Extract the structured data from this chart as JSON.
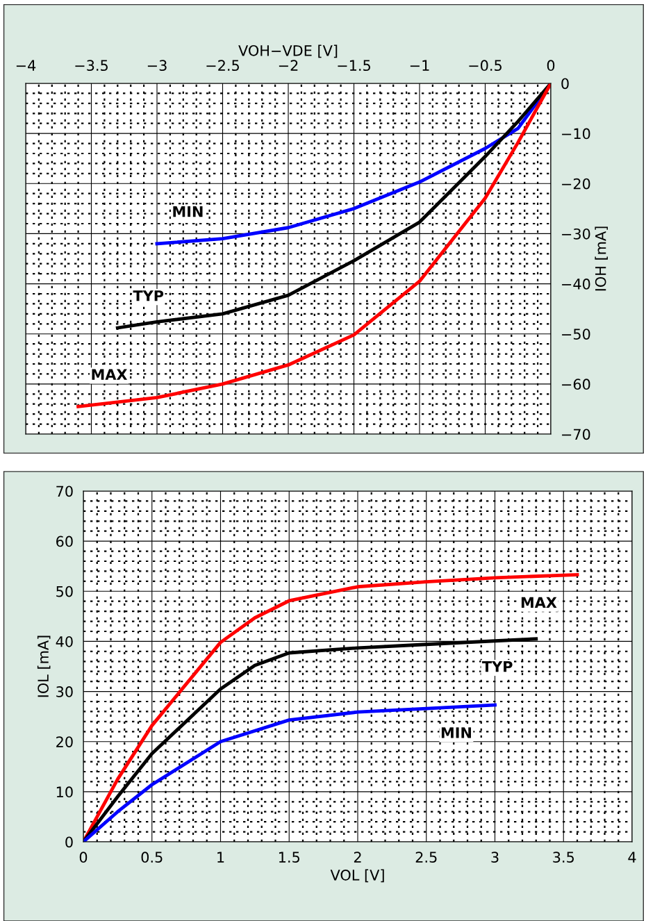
{
  "chart_data": [
    {
      "type": "line",
      "xlabel": "VOH−VDE [V]",
      "ylabel": "IOH [mA]",
      "xlim": [
        -4,
        0
      ],
      "xticks": [
        -4,
        -3.5,
        -3,
        -2.5,
        -2,
        -1.5,
        -1,
        -0.5,
        0
      ],
      "ylim": [
        -70,
        0
      ],
      "yticks": [
        -70,
        -60,
        -50,
        -40,
        -30,
        -20,
        -10,
        0
      ],
      "grid": true,
      "marker": "none",
      "line_style": "solid",
      "series": [
        {
          "name": "MIN",
          "color": "#0000ff",
          "x": [
            -3,
            -2.5,
            -2,
            -1.5,
            -1,
            -0.5,
            -0.25,
            0
          ],
          "values": [
            -32,
            -31,
            -28.8,
            -25,
            -19.7,
            -13,
            -9,
            0
          ]
        },
        {
          "name": "TYP",
          "color": "#000000",
          "x": [
            -3.3,
            -3,
            -2.5,
            -2,
            -1.5,
            -1,
            -0.5,
            -0.25,
            0
          ],
          "values": [
            -48.8,
            -47.6,
            -46,
            -42.3,
            -35.4,
            -27.7,
            -14.6,
            -7.6,
            0
          ]
        },
        {
          "name": "MAX",
          "color": "#ff0000",
          "x": [
            -3.6,
            -3,
            -2.5,
            -2,
            -1.5,
            -1,
            -0.5,
            -0.25,
            0
          ],
          "values": [
            -64.5,
            -62.7,
            -60,
            -56.2,
            -50.2,
            -39.5,
            -22.9,
            -11.8,
            0
          ]
        }
      ]
    },
    {
      "type": "line",
      "xlabel": "VOL [V]",
      "ylabel": "IOL [mA]",
      "xlim": [
        0,
        4
      ],
      "xticks": [
        0,
        0.5,
        1,
        1.5,
        2,
        2.5,
        3,
        3.5,
        4
      ],
      "ylim": [
        0,
        70
      ],
      "yticks": [
        0,
        10,
        20,
        30,
        40,
        50,
        60,
        70
      ],
      "grid": true,
      "marker": "none",
      "line_style": "solid",
      "series": [
        {
          "name": "MAX",
          "color": "#ff0000",
          "x": [
            0,
            0.25,
            0.5,
            1,
            1.25,
            1.5,
            2,
            2.5,
            3,
            3.6
          ],
          "values": [
            0,
            12.5,
            23.2,
            39.8,
            44.7,
            48.1,
            50.9,
            51.9,
            52.7,
            53.3
          ]
        },
        {
          "name": "TYP",
          "color": "#000000",
          "x": [
            0,
            0.25,
            0.5,
            1,
            1.25,
            1.5,
            2,
            2.5,
            3,
            3.3
          ],
          "values": [
            0,
            9,
            17.6,
            30.5,
            35.2,
            37.7,
            38.7,
            39.4,
            40.1,
            40.5
          ]
        },
        {
          "name": "MIN",
          "color": "#0000ff",
          "x": [
            0,
            0.25,
            0.5,
            1,
            1.5,
            2,
            2.5,
            3
          ],
          "values": [
            0,
            6,
            11.4,
            20,
            24.3,
            25.9,
            26.6,
            27.3
          ]
        }
      ]
    }
  ]
}
